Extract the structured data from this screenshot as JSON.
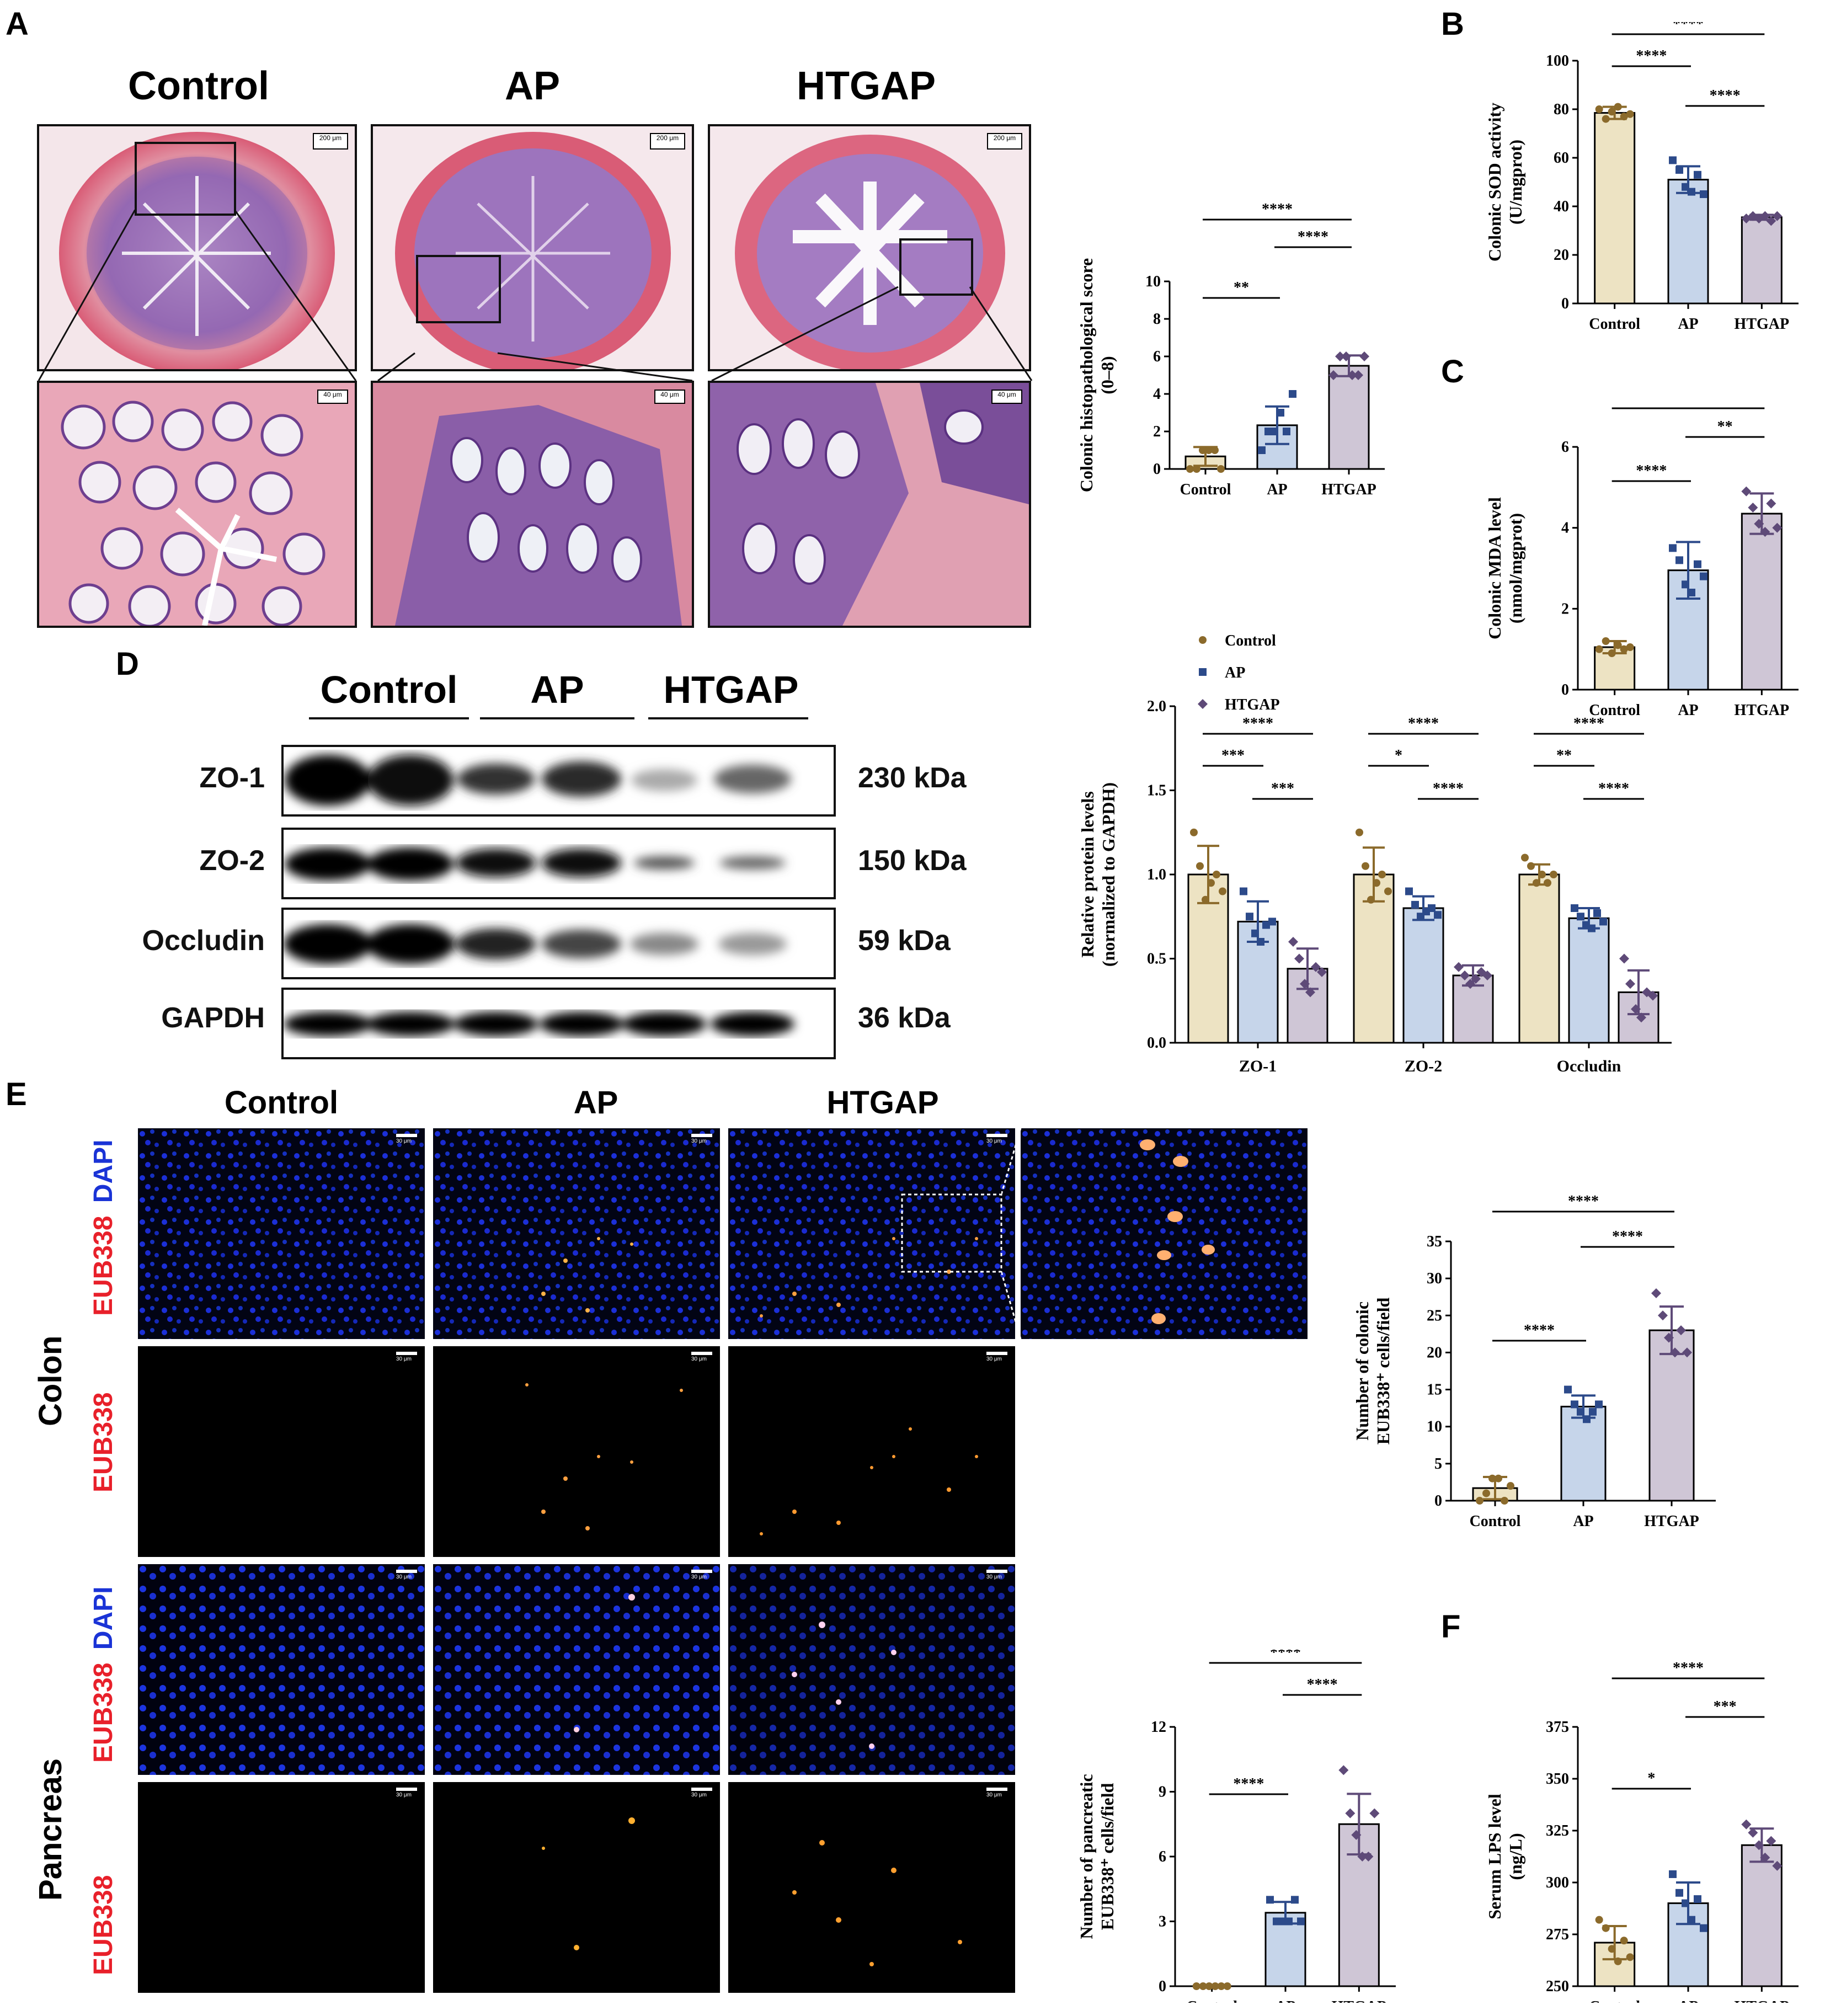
{
  "panels": {
    "A": {
      "letter": "A",
      "columns": [
        "Control",
        "AP",
        "HTGAP"
      ],
      "scale_top": "200 μm",
      "scale_bottom": "40 μm"
    },
    "B": {
      "letter": "B"
    },
    "C": {
      "letter": "C"
    },
    "D": {
      "letter": "D",
      "groups": [
        "Control",
        "AP",
        "HTGAP"
      ],
      "rows": [
        {
          "label": "ZO-1",
          "kda": "230 kDa"
        },
        {
          "label": "ZO-2",
          "kda": "150 kDa"
        },
        {
          "label": "Occludin",
          "kda": "59 kDa"
        },
        {
          "label": "GAPDH",
          "kda": "36 kDa"
        }
      ]
    },
    "E": {
      "letter": "E",
      "columns": [
        "Control",
        "AP",
        "HTGAP"
      ],
      "tissue_colon": "Colon",
      "tissue_pancreas": "Pancreas",
      "stain_red": "EUB338",
      "stain_blue": "DAPI",
      "scale": "30 μm"
    },
    "F": {
      "letter": "F"
    }
  },
  "colors": {
    "control_fill": "#ede3c3",
    "control_dot": "#8b6a2b",
    "ap_fill": "#c6d5ea",
    "ap_dot": "#2c4a8a",
    "htgap_fill": "#cfc6d6",
    "htgap_dot": "#5e4a78"
  },
  "chart_data": [
    {
      "id": "histo",
      "type": "bar",
      "categories": [
        "Control",
        "AP",
        "HTGAP"
      ],
      "values": [
        0.67,
        2.33,
        5.5
      ],
      "errors": [
        0.5,
        1.0,
        0.55
      ],
      "points": [
        [
          0,
          0,
          1,
          1,
          1,
          0
        ],
        [
          1,
          2,
          2,
          3,
          2,
          4
        ],
        [
          5,
          6,
          6,
          5,
          5,
          6
        ]
      ],
      "ylabel": "Colonic histopathological score (0–8)",
      "ylim": [
        0,
        10
      ],
      "yticks": [
        0,
        2,
        4,
        6,
        8,
        10
      ],
      "sig": [
        {
          "from": 0,
          "to": 1,
          "label": "**"
        },
        {
          "from": 1,
          "to": 2,
          "label": "****"
        },
        {
          "from": 0,
          "to": 2,
          "label": "****"
        }
      ]
    },
    {
      "id": "sod",
      "type": "bar",
      "categories": [
        "Control",
        "AP",
        "HTGAP"
      ],
      "values": [
        78.5,
        51,
        35.5
      ],
      "errors": [
        2.5,
        5.5,
        1.0
      ],
      "points": [
        [
          80,
          76,
          79,
          81,
          77,
          78
        ],
        [
          59,
          55,
          48,
          46,
          53,
          45
        ],
        [
          35,
          36,
          35,
          36,
          34,
          36
        ]
      ],
      "ylabel": "Colonic SOD activity (U/mgprot)",
      "ylim": [
        0,
        100
      ],
      "yticks": [
        0,
        20,
        40,
        60,
        80,
        100
      ],
      "sig": [
        {
          "from": 0,
          "to": 1,
          "label": "****"
        },
        {
          "from": 1,
          "to": 2,
          "label": "****"
        },
        {
          "from": 0,
          "to": 2,
          "label": "****"
        }
      ]
    },
    {
      "id": "mda",
      "type": "bar",
      "categories": [
        "Control",
        "AP",
        "HTGAP"
      ],
      "values": [
        1.05,
        2.95,
        4.35
      ],
      "errors": [
        0.15,
        0.7,
        0.5
      ],
      "points": [
        [
          1.0,
          1.2,
          0.9,
          1.1,
          1.0,
          1.05
        ],
        [
          3.5,
          3.2,
          2.6,
          2.4,
          3.1,
          2.8
        ],
        [
          4.9,
          4.5,
          4.1,
          3.9,
          4.6,
          4.0
        ]
      ],
      "ylabel": "Colonic MDA level (nmol/mgprot)",
      "ylim": [
        0,
        6
      ],
      "yticks": [
        0,
        2,
        4,
        6
      ],
      "sig": [
        {
          "from": 0,
          "to": 1,
          "label": "****"
        },
        {
          "from": 1,
          "to": 2,
          "label": "**"
        },
        {
          "from": 0,
          "to": 2,
          "label": "****"
        }
      ]
    },
    {
      "id": "protein",
      "type": "bar",
      "categories": [
        "ZO-1",
        "ZO-2",
        "Occludin"
      ],
      "series": [
        {
          "name": "Control",
          "values": [
            1.0,
            1.0,
            1.0
          ],
          "errors": [
            0.17,
            0.16,
            0.06
          ],
          "points": [
            [
              1.25,
              1.05,
              0.85,
              0.95,
              1.0,
              0.9
            ],
            [
              1.25,
              1.05,
              0.85,
              0.95,
              1.0,
              0.9
            ],
            [
              1.1,
              1.05,
              0.95,
              1.0,
              0.95,
              1.0
            ]
          ]
        },
        {
          "name": "AP",
          "values": [
            0.72,
            0.8,
            0.74
          ],
          "errors": [
            0.12,
            0.07,
            0.06
          ],
          "points": [
            [
              0.9,
              0.75,
              0.65,
              0.6,
              0.7,
              0.72
            ],
            [
              0.9,
              0.82,
              0.75,
              0.78,
              0.8,
              0.76
            ],
            [
              0.8,
              0.75,
              0.7,
              0.68,
              0.77,
              0.72
            ]
          ]
        },
        {
          "name": "HTGAP",
          "values": [
            0.44,
            0.4,
            0.3
          ],
          "errors": [
            0.12,
            0.06,
            0.13
          ],
          "points": [
            [
              0.6,
              0.5,
              0.35,
              0.3,
              0.45,
              0.42
            ],
            [
              0.45,
              0.4,
              0.35,
              0.38,
              0.42,
              0.4
            ],
            [
              0.5,
              0.35,
              0.2,
              0.15,
              0.3,
              0.28
            ]
          ]
        }
      ],
      "ylabel": "Relative protein levels (normalized to GAPDH)",
      "ylim": [
        0,
        2.0
      ],
      "yticks": [
        0.0,
        0.5,
        1.0,
        1.5,
        2.0
      ],
      "sig": [
        [
          {
            "from": 0,
            "to": 1,
            "label": "***"
          },
          {
            "from": 1,
            "to": 2,
            "label": "***"
          },
          {
            "from": 0,
            "to": 2,
            "label": "****"
          }
        ],
        [
          {
            "from": 0,
            "to": 1,
            "label": "*"
          },
          {
            "from": 1,
            "to": 2,
            "label": "****"
          },
          {
            "from": 0,
            "to": 2,
            "label": "****"
          }
        ],
        [
          {
            "from": 0,
            "to": 1,
            "label": "**"
          },
          {
            "from": 1,
            "to": 2,
            "label": "****"
          },
          {
            "from": 0,
            "to": 2,
            "label": "****"
          }
        ]
      ]
    },
    {
      "id": "colonic",
      "type": "bar",
      "categories": [
        "Control",
        "AP",
        "HTGAP"
      ],
      "values": [
        1.7,
        12.7,
        23.0
      ],
      "errors": [
        1.5,
        1.5,
        3.2
      ],
      "points": [
        [
          0,
          1,
          3,
          3,
          0,
          2
        ],
        [
          15,
          13,
          12,
          11,
          12,
          13
        ],
        [
          28,
          25,
          22,
          20,
          23,
          20
        ]
      ],
      "ylabel": "Number of colonic EUB338⁺ cells/field",
      "ylim": [
        0,
        35
      ],
      "yticks": [
        0,
        5,
        10,
        15,
        20,
        25,
        30,
        35
      ],
      "sig": [
        {
          "from": 0,
          "to": 1,
          "label": "****"
        },
        {
          "from": 1,
          "to": 2,
          "label": "****"
        },
        {
          "from": 0,
          "to": 2,
          "label": "****"
        }
      ]
    },
    {
      "id": "pancreatic",
      "type": "bar",
      "categories": [
        "Control",
        "AP",
        "HTGAP"
      ],
      "values": [
        0.0,
        3.4,
        7.5
      ],
      "errors": [
        0.0,
        0.5,
        1.4
      ],
      "points": [
        [
          0,
          0,
          0,
          0,
          0,
          0
        ],
        [
          4,
          3,
          3,
          3,
          4,
          3
        ],
        [
          10,
          8,
          7,
          6,
          6,
          8
        ]
      ],
      "ylabel": "Number of pancreatic EUB338⁺ cells/field",
      "ylim": [
        0,
        12
      ],
      "yticks": [
        0,
        3,
        6,
        9,
        12
      ],
      "sig": [
        {
          "from": 0,
          "to": 1,
          "label": "****"
        },
        {
          "from": 1,
          "to": 2,
          "label": "****"
        },
        {
          "from": 0,
          "to": 2,
          "label": "****"
        }
      ]
    },
    {
      "id": "lps",
      "type": "bar",
      "categories": [
        "Control",
        "AP",
        "HTGAP"
      ],
      "values": [
        271,
        290,
        318
      ],
      "errors": [
        8,
        10,
        8
      ],
      "points": [
        [
          282,
          278,
          268,
          262,
          272,
          264
        ],
        [
          304,
          295,
          290,
          282,
          292,
          278
        ],
        [
          328,
          324,
          318,
          312,
          320,
          308
        ]
      ],
      "ylabel": "Serum LPS level (ng/L)",
      "ylim": [
        250,
        375
      ],
      "yticks": [
        250,
        275,
        300,
        325,
        350,
        375
      ],
      "sig": [
        {
          "from": 0,
          "to": 1,
          "label": "*"
        },
        {
          "from": 1,
          "to": 2,
          "label": "***"
        },
        {
          "from": 0,
          "to": 2,
          "label": "****"
        }
      ]
    }
  ]
}
